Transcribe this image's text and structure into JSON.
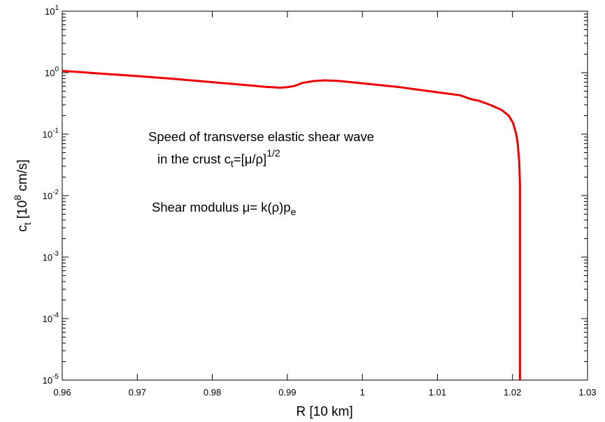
{
  "chart_data": {
    "type": "line",
    "title": "",
    "xlabel": "R [10 km]",
    "ylabel_parts": {
      "c": "c",
      "t": "t",
      "open": " [10",
      "exp": "8",
      "rest": " cm/s]"
    },
    "x_scale": "linear",
    "y_scale": "log",
    "xlim": [
      0.96,
      1.03
    ],
    "ylim_exponents": [
      -5,
      1
    ],
    "xticks": [
      "0.96",
      "0.97",
      "0.98",
      "0.99",
      "1",
      "1.01",
      "1.02",
      "1.03"
    ],
    "yticks": [
      {
        "base": "10",
        "exp": "-5"
      },
      {
        "base": "10",
        "exp": "-4"
      },
      {
        "base": "10",
        "exp": "-3"
      },
      {
        "base": "10",
        "exp": "-2"
      },
      {
        "base": "10",
        "exp": "-1"
      },
      {
        "base": "10",
        "exp": "0"
      },
      {
        "base": "10",
        "exp": "1"
      }
    ],
    "grid": false,
    "series": [
      {
        "color": "#ee0000",
        "x": [
          0.96,
          0.965,
          0.97,
          0.975,
          0.98,
          0.985,
          0.987,
          0.989,
          0.99,
          0.991,
          0.992,
          0.9935,
          0.995,
          0.997,
          1.0,
          1.005,
          1.01,
          1.013,
          1.0145,
          1.0155,
          1.017,
          1.0185,
          1.0195,
          1.0201,
          1.0205,
          1.0207,
          1.0209,
          1.021,
          1.021,
          1.021
        ],
        "y": [
          1.07,
          0.97,
          0.88,
          0.79,
          0.7,
          0.62,
          0.59,
          0.57,
          0.58,
          0.61,
          0.68,
          0.73,
          0.75,
          0.73,
          0.67,
          0.58,
          0.48,
          0.43,
          0.37,
          0.35,
          0.3,
          0.25,
          0.2,
          0.15,
          0.1,
          0.07,
          0.035,
          0.015,
          0.001,
          1e-05
        ]
      }
    ],
    "annotations": {
      "line1": "Speed of transverse elastic shear wave",
      "line2_text": "in the crust ",
      "line2_c": "c",
      "line2_sub": "t",
      "line2_mid": "=[μ/ρ]",
      "line2_sup": "1/2",
      "line3_text": "Shear modulus ",
      "line3_formula": "μ= k(ρ)p",
      "line3_sub": "e"
    }
  }
}
